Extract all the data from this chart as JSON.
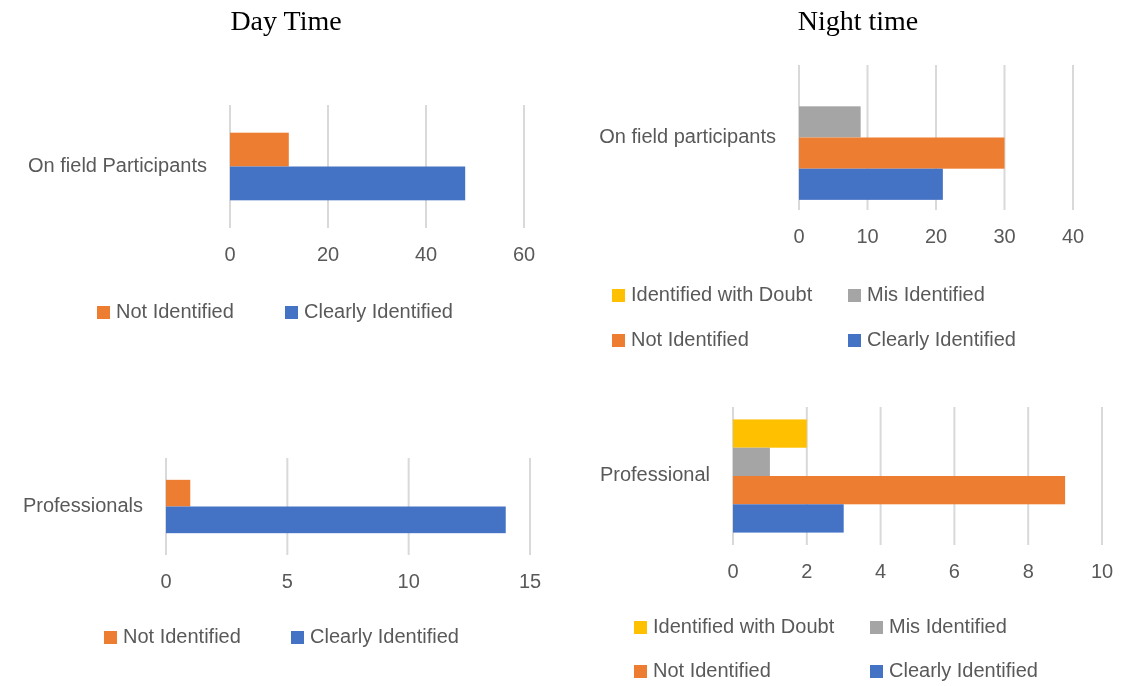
{
  "chart_data": [
    {
      "type": "bar",
      "orientation": "horizontal",
      "title": "Day Time",
      "categories": [
        "On field Participants"
      ],
      "series": [
        {
          "name": "Not Identified",
          "color": "#ed7d31",
          "values": [
            12
          ]
        },
        {
          "name": "Clearly Identified",
          "color": "#4472c4",
          "values": [
            48
          ]
        }
      ],
      "xlim": [
        0,
        60
      ],
      "xticks": [
        0,
        20,
        40,
        60
      ],
      "grid": "x",
      "legend": "bottom"
    },
    {
      "type": "bar",
      "orientation": "horizontal",
      "title": "Night time",
      "categories": [
        "On field participants"
      ],
      "series": [
        {
          "name": "Identified with Doubt",
          "color": "#ffc000",
          "values": [
            0
          ]
        },
        {
          "name": "Mis Identified",
          "color": "#a5a5a5",
          "values": [
            9
          ]
        },
        {
          "name": "Not Identified",
          "color": "#ed7d31",
          "values": [
            30
          ]
        },
        {
          "name": "Clearly Identified",
          "color": "#4472c4",
          "values": [
            21
          ]
        }
      ],
      "xlim": [
        0,
        40
      ],
      "xticks": [
        0,
        10,
        20,
        30,
        40
      ],
      "grid": "x",
      "legend": "bottom"
    },
    {
      "type": "bar",
      "orientation": "horizontal",
      "categories": [
        "Professionals"
      ],
      "series": [
        {
          "name": "Not Identified",
          "color": "#ed7d31",
          "values": [
            1
          ]
        },
        {
          "name": "Clearly Identified",
          "color": "#4472c4",
          "values": [
            14
          ]
        }
      ],
      "xlim": [
        0,
        15
      ],
      "xticks": [
        0,
        5,
        10,
        15
      ],
      "grid": "x",
      "legend": "bottom"
    },
    {
      "type": "bar",
      "orientation": "horizontal",
      "categories": [
        "Professional"
      ],
      "series": [
        {
          "name": "Identified with Doubt",
          "color": "#ffc000",
          "values": [
            2
          ]
        },
        {
          "name": "Mis Identified",
          "color": "#a5a5a5",
          "values": [
            1
          ]
        },
        {
          "name": "Not Identified",
          "color": "#ed7d31",
          "values": [
            9
          ]
        },
        {
          "name": "Clearly Identified",
          "color": "#4472c4",
          "values": [
            3
          ]
        }
      ],
      "xlim": [
        0,
        10
      ],
      "xticks": [
        0,
        2,
        4,
        6,
        8,
        10
      ],
      "grid": "x",
      "legend": "bottom"
    }
  ]
}
